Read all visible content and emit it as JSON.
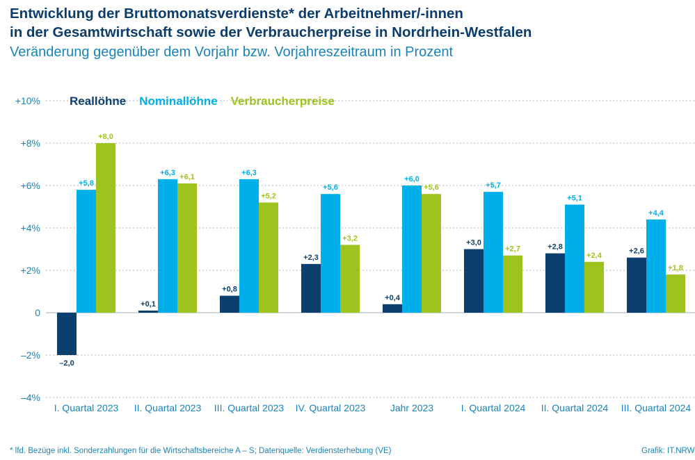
{
  "title_line1": "Entwicklung der Bruttomonatsverdienste* der Arbeitnehmer/-innen",
  "title_line2": "in der Gesamtwirtschaft sowie der Verbraucherpreise in Nordrhein-Westfalen",
  "subtitle": "Veränderung gegenüber dem Vorjahr bzw. Vorjahreszeitraum in Prozent",
  "footnote": "* lfd. Bezüge inkl. Sonderzahlungen für die Wirtschaftsbereiche A – S; Datenquelle: Verdiensterhebung (VE)",
  "credit": "Grafik: IT.NRW",
  "chart_data": {
    "type": "bar",
    "categories": [
      "I. Quartal 2023",
      "II. Quartal 2023",
      "III. Quartal 2023",
      "IV. Quartal 2023",
      "Jahr 2023",
      "I. Quartal 2024",
      "II. Quartal 2024",
      "III. Quartal 2024"
    ],
    "series": [
      {
        "name": "Reallöhne",
        "color": "#0d3f6e",
        "values": [
          -2.0,
          0.1,
          0.8,
          2.3,
          0.4,
          3.0,
          2.8,
          2.6
        ],
        "labels": [
          "–2,0",
          "+0,1",
          "+0,8",
          "+2,3",
          "+0,4",
          "+3,0",
          "+2,8",
          "+2,6"
        ]
      },
      {
        "name": "Nominallöhne",
        "color": "#00aee9",
        "values": [
          5.8,
          6.3,
          6.3,
          5.6,
          6.0,
          5.7,
          5.1,
          4.4
        ],
        "labels": [
          "+5,8",
          "+6,3",
          "+6,3",
          "+5,6",
          "+6,0",
          "+5,7",
          "+5,1",
          "+4,4"
        ]
      },
      {
        "name": "Verbraucherpreise",
        "color": "#9dc31c",
        "values": [
          8.0,
          6.1,
          5.2,
          3.2,
          5.6,
          2.7,
          2.4,
          1.8
        ],
        "labels": [
          "+8,0",
          "+6,1",
          "+5,2",
          "+3,2",
          "+5,6",
          "+2,7",
          "+2,4",
          "+1,8"
        ]
      }
    ],
    "ylim": [
      -4,
      10
    ],
    "yticks": [
      10,
      8,
      6,
      4,
      2,
      0,
      -2,
      -4
    ],
    "ytick_labels": [
      "+10%",
      "+8%",
      "+6%",
      "+4%",
      "+2%",
      "0",
      "–2%",
      "–4%"
    ],
    "grid": true,
    "legend_position": "top-left"
  }
}
